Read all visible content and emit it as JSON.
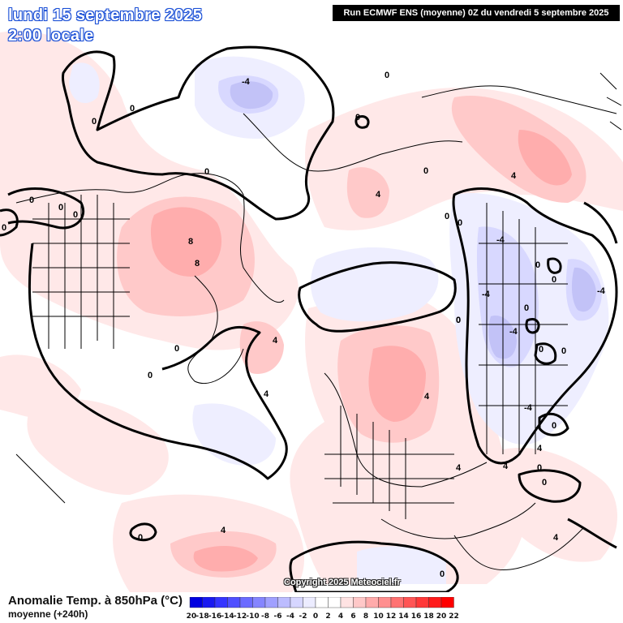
{
  "header": {
    "date_line": "lundi 15 septembre 2025",
    "time_line": "2:00 locale",
    "run_info": "Run ECMWF ENS (moyenne) 0Z du vendredi 5 septembre 2025"
  },
  "copyright": "Copyright 2025 Meteociel.fr",
  "footer": {
    "title": "Anomalie Temp. à 850hPa (°C)",
    "subtitle": "moyenne  (+240h)"
  },
  "legend": {
    "values": [
      "-20",
      "-18",
      "-16",
      "-14",
      "-12",
      "-10",
      "-8",
      "-6",
      "-4",
      "-2",
      "0",
      "2",
      "4",
      "6",
      "8",
      "10",
      "12",
      "14",
      "16",
      "18",
      "20",
      "22"
    ],
    "colors": [
      "#0000e0",
      "#1a1af0",
      "#3535ff",
      "#5050ff",
      "#6b6bff",
      "#8585ff",
      "#a0a0ff",
      "#bcbcff",
      "#d6d6ff",
      "#ececff",
      "#ffffff",
      "#ffffff",
      "#ffe3e3",
      "#ffc8c8",
      "#ffabab",
      "#ff8f8f",
      "#ff7272",
      "#ff5555",
      "#ff3838",
      "#ff1b1b",
      "#ff0000"
    ]
  },
  "map": {
    "field_colors": {
      "warm_light": "#ffe8e8",
      "warm_mid": "#ffc9c9",
      "warm_strong": "#ffadad",
      "cold_light": "#eeeeff",
      "cold_mid": "#d8d8ff",
      "cold_strong": "#c2c2f7"
    },
    "isoline_labels": [
      "-4",
      "0",
      "0",
      "0",
      "0",
      "0",
      "0",
      "0",
      "0",
      "8",
      "8",
      "0",
      "0",
      "4",
      "4",
      "0",
      "4",
      "0",
      "-4",
      "-4",
      "0",
      "-4",
      "0",
      "0",
      "-4",
      "4",
      "0",
      "4",
      "4",
      "4",
      "0",
      "4",
      "0",
      "0",
      "0",
      "4",
      "0",
      "0",
      "4",
      "0",
      "0",
      "0",
      "0",
      "-4"
    ]
  }
}
